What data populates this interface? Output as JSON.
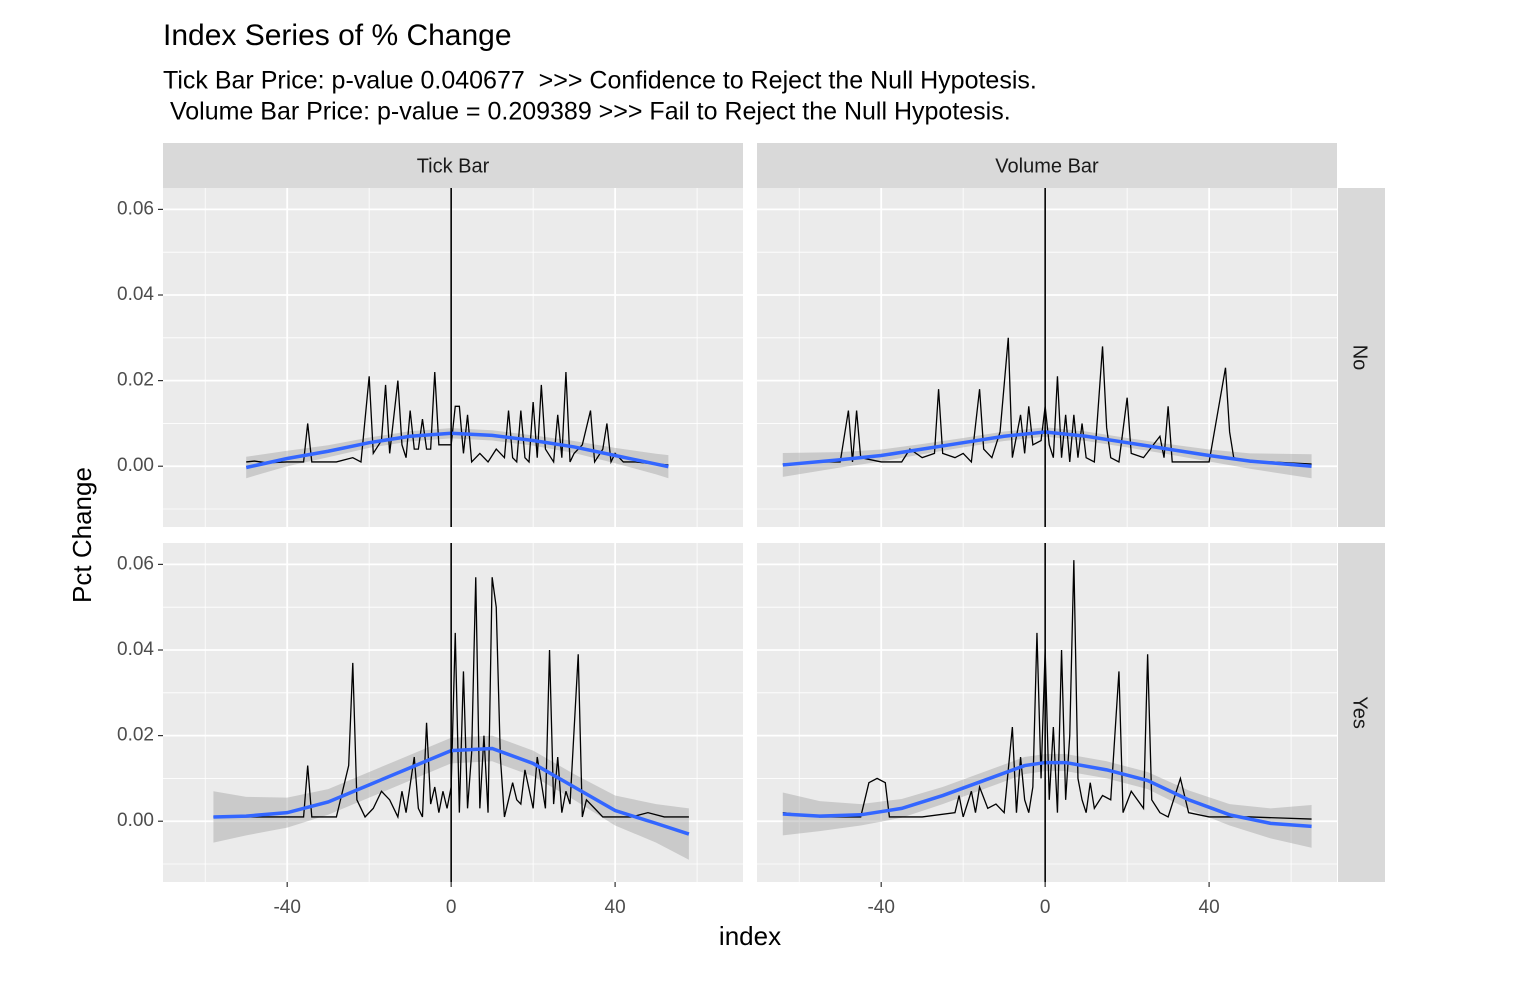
{
  "chart_data": {
    "type": "line",
    "title": "Index Series of % Change",
    "subtitle": [
      "Tick Bar Price: p-value 0.040677  >>> Confidence to Reject the Null Hypotesis.",
      " Volume Bar Price: p-value = 0.209389 >>> Fail to Reject the Null Hypotesis."
    ],
    "x_label": "index",
    "y_label": "Pct Change",
    "columns": [
      "Tick Bar",
      "Volume Bar"
    ],
    "xlim": [
      -70.3,
      71.2
    ],
    "xticks": [
      -40,
      0,
      40
    ],
    "xminor": [
      -60,
      -20,
      20,
      60
    ],
    "ylim": [
      -0.0142,
      0.065
    ],
    "yticks": [
      {
        "value": 0,
        "label": "0.00"
      },
      {
        "value": 0.02,
        "label": "0.02"
      },
      {
        "value": 0.04,
        "label": "0.04"
      },
      {
        "value": 0.06,
        "label": "0.06"
      }
    ],
    "yminor": [
      -0.01,
      0.01,
      0.03,
      0.05
    ],
    "vline": 0,
    "grid": true,
    "rows": [
      {
        "label": "No",
        "panels": [
          {
            "line": {
              "color": "#000000",
              "x": [
                -50,
                -48,
                -45,
                -40,
                -36,
                -35,
                -34,
                -28,
                -24,
                -22,
                -20,
                -19,
                -17,
                -16,
                -15,
                -13,
                -12,
                -11,
                -10,
                -9,
                -8,
                -7,
                -6,
                -5,
                -4,
                -3,
                -2,
                0,
                1,
                2,
                3,
                4,
                5,
                7,
                9,
                11,
                13,
                14,
                15,
                16,
                17,
                18,
                19,
                20,
                21,
                22,
                23,
                25,
                26,
                27,
                28,
                29,
                30,
                32,
                34,
                35,
                37,
                38,
                39,
                40,
                42,
                45,
                50,
                53
              ],
              "values": [
                0.001,
                0.0012,
                0.0008,
                0.001,
                0.001,
                0.01,
                0.001,
                0.001,
                0.002,
                0.001,
                0.021,
                0.003,
                0.006,
                0.019,
                0.003,
                0.02,
                0.005,
                0.002,
                0.013,
                0.004,
                0.004,
                0.011,
                0.004,
                0.004,
                0.022,
                0.005,
                0.005,
                0.005,
                0.014,
                0.014,
                0.003,
                0.012,
                0.001,
                0.003,
                0.001,
                0.004,
                0.002,
                0.013,
                0.002,
                0.001,
                0.013,
                0.002,
                0.001,
                0.015,
                0.002,
                0.019,
                0.004,
                0.001,
                0.012,
                0.002,
                0.022,
                0.001,
                0.003,
                0.005,
                0.013,
                0.001,
                0.004,
                0.01,
                0.001,
                0.003,
                0.001,
                0.001,
                0.0005,
                0.0003
              ]
            },
            "smooth": {
              "color": "#3366FF",
              "band_color": "#999999",
              "x": [
                -50,
                -40,
                -30,
                -20,
                -10,
                0,
                10,
                20,
                30,
                40,
                50,
                53
              ],
              "values": [
                -0.0003,
                0.0018,
                0.0035,
                0.0055,
                0.007,
                0.0077,
                0.0072,
                0.006,
                0.0045,
                0.0025,
                0.0005,
                -0.0001
              ],
              "lower": [
                -0.0028,
                0.0,
                0.0021,
                0.0043,
                0.0058,
                0.0065,
                0.006,
                0.0048,
                0.0031,
                0.0007,
                -0.0019,
                -0.0028
              ],
              "upper": [
                0.0022,
                0.0036,
                0.0049,
                0.0067,
                0.0082,
                0.0089,
                0.0084,
                0.0072,
                0.0059,
                0.0043,
                0.0029,
                0.0026
              ]
            }
          },
          {
            "line": {
              "color": "#000000",
              "x": [
                -64,
                -55,
                -50,
                -48,
                -47,
                -46,
                -45,
                -40,
                -35,
                -33,
                -30,
                -27,
                -26,
                -25,
                -22,
                -20,
                -18,
                -16,
                -15,
                -13,
                -11,
                -9,
                -8,
                -6,
                -5,
                -4,
                -3,
                -1,
                0,
                1,
                2,
                3,
                4,
                5,
                6,
                7,
                8,
                9,
                10,
                12,
                14,
                15,
                16,
                18,
                20,
                21,
                24,
                28,
                29,
                30,
                31,
                35,
                40,
                44,
                45,
                46,
                50,
                55,
                65
              ],
              "values": [
                0.0005,
                0.001,
                0.001,
                0.013,
                0.001,
                0.013,
                0.002,
                0.001,
                0.001,
                0.004,
                0.002,
                0.003,
                0.018,
                0.003,
                0.002,
                0.003,
                0.001,
                0.018,
                0.004,
                0.002,
                0.008,
                0.03,
                0.002,
                0.012,
                0.003,
                0.014,
                0.005,
                0.006,
                0.014,
                0.005,
                0.002,
                0.021,
                0.002,
                0.012,
                0.001,
                0.012,
                0.002,
                0.01,
                0.002,
                0.001,
                0.028,
                0.009,
                0.002,
                0.001,
                0.016,
                0.003,
                0.002,
                0.007,
                0.002,
                0.014,
                0.001,
                0.001,
                0.001,
                0.023,
                0.008,
                0.002,
                0.001,
                0.001,
                0.0005
              ]
            },
            "smooth": {
              "color": "#3366FF",
              "band_color": "#999999",
              "x": [
                -64,
                -50,
                -40,
                -30,
                -20,
                -10,
                0,
                10,
                20,
                30,
                40,
                50,
                65
              ],
              "values": [
                0.0003,
                0.0015,
                0.0025,
                0.004,
                0.0055,
                0.007,
                0.008,
                0.007,
                0.0055,
                0.004,
                0.0025,
                0.0012,
                0.0
              ],
              "lower": [
                -0.0025,
                -0.0003,
                0.0011,
                0.0028,
                0.0044,
                0.0059,
                0.0069,
                0.0059,
                0.0044,
                0.0028,
                0.0011,
                -0.0006,
                -0.0028
              ],
              "upper": [
                0.0031,
                0.0033,
                0.0039,
                0.0052,
                0.0066,
                0.0081,
                0.0091,
                0.0081,
                0.0066,
                0.0052,
                0.0039,
                0.003,
                0.0028
              ]
            }
          }
        ]
      },
      {
        "label": "Yes",
        "panels": [
          {
            "line": {
              "color": "#000000",
              "x": [
                -58,
                -50,
                -40,
                -36,
                -35,
                -34,
                -28,
                -25,
                -24,
                -23,
                -21,
                -19,
                -17,
                -15,
                -13,
                -12,
                -11,
                -9,
                -8,
                -7,
                -6,
                -5,
                -4,
                -3,
                -2,
                -1,
                0,
                1,
                2,
                3,
                4,
                5,
                6,
                7,
                8,
                9,
                10,
                11,
                12,
                13,
                14,
                15,
                16,
                17,
                18,
                20,
                21,
                23,
                24,
                25,
                26,
                27,
                28,
                29,
                31,
                32,
                33,
                35,
                37,
                40,
                44,
                48,
                52,
                58
              ],
              "values": [
                0.001,
                0.001,
                0.001,
                0.001,
                0.013,
                0.001,
                0.001,
                0.013,
                0.037,
                0.005,
                0.001,
                0.003,
                0.007,
                0.005,
                0.001,
                0.007,
                0.002,
                0.015,
                0.003,
                0.001,
                0.023,
                0.004,
                0.008,
                0.002,
                0.007,
                0.003,
                0.008,
                0.044,
                0.002,
                0.035,
                0.003,
                0.016,
                0.057,
                0.003,
                0.02,
                0.002,
                0.057,
                0.05,
                0.015,
                0.001,
                0.005,
                0.009,
                0.005,
                0.004,
                0.012,
                0.003,
                0.015,
                0.003,
                0.04,
                0.004,
                0.015,
                0.002,
                0.007,
                0.004,
                0.039,
                0.001,
                0.005,
                0.003,
                0.001,
                0.001,
                0.001,
                0.002,
                0.001,
                0.001
              ]
            },
            "smooth": {
              "color": "#3366FF",
              "band_color": "#999999",
              "x": [
                -58,
                -50,
                -40,
                -30,
                -20,
                -10,
                0,
                10,
                20,
                30,
                40,
                50,
                58
              ],
              "values": [
                0.001,
                0.0012,
                0.002,
                0.0045,
                0.0085,
                0.0125,
                0.0165,
                0.017,
                0.0135,
                0.008,
                0.0025,
                -0.0005,
                -0.003
              ],
              "lower": [
                -0.005,
                -0.0033,
                -0.0015,
                0.0015,
                0.0055,
                0.0095,
                0.0135,
                0.014,
                0.0105,
                0.005,
                -0.001,
                -0.005,
                -0.009
              ],
              "upper": [
                0.007,
                0.0057,
                0.0055,
                0.0075,
                0.0115,
                0.0155,
                0.0195,
                0.02,
                0.0165,
                0.011,
                0.006,
                0.004,
                0.003
              ]
            }
          },
          {
            "line": {
              "color": "#000000",
              "x": [
                -64,
                -55,
                -45,
                -43,
                -41,
                -39,
                -38,
                -30,
                -22,
                -21,
                -20,
                -18,
                -17,
                -16,
                -14,
                -12,
                -10,
                -8,
                -7,
                -6,
                -5,
                -4,
                -3,
                -2,
                -1,
                0,
                1,
                2,
                3,
                4,
                5,
                6,
                7,
                8,
                9,
                10,
                11,
                12,
                14,
                16,
                18,
                19,
                21,
                24,
                25,
                26,
                28,
                30,
                33,
                35,
                40,
                50,
                65
              ],
              "values": [
                0.002,
                0.001,
                0.001,
                0.009,
                0.01,
                0.009,
                0.001,
                0.001,
                0.002,
                0.006,
                0.001,
                0.007,
                0.002,
                0.008,
                0.003,
                0.004,
                0.002,
                0.022,
                0.002,
                0.015,
                0.005,
                0.002,
                0.008,
                0.044,
                0.01,
                0.04,
                0.005,
                0.022,
                0.002,
                0.04,
                0.005,
                0.02,
                0.061,
                0.01,
                0.005,
                0.002,
                0.009,
                0.003,
                0.006,
                0.005,
                0.035,
                0.002,
                0.007,
                0.003,
                0.039,
                0.005,
                0.002,
                0.001,
                0.01,
                0.002,
                0.001,
                0.001,
                0.0005
              ]
            },
            "smooth": {
              "color": "#3366FF",
              "band_color": "#999999",
              "x": [
                -64,
                -55,
                -45,
                -35,
                -25,
                -15,
                -5,
                0,
                5,
                15,
                25,
                35,
                45,
                55,
                65
              ],
              "values": [
                0.0017,
                0.0012,
                0.0015,
                0.003,
                0.006,
                0.0095,
                0.013,
                0.0137,
                0.0137,
                0.012,
                0.0095,
                0.005,
                0.0015,
                -0.0005,
                -0.0012
              ],
              "lower": [
                -0.0033,
                -0.0023,
                -0.001,
                0.0008,
                0.004,
                0.0075,
                0.011,
                0.0117,
                0.0117,
                0.01,
                0.0075,
                0.0028,
                -0.001,
                -0.004,
                -0.0062
              ],
              "upper": [
                0.0067,
                0.0047,
                0.004,
                0.0052,
                0.008,
                0.0115,
                0.015,
                0.0157,
                0.0157,
                0.014,
                0.0115,
                0.0072,
                0.004,
                0.003,
                0.0038
              ]
            }
          }
        ]
      }
    ]
  }
}
